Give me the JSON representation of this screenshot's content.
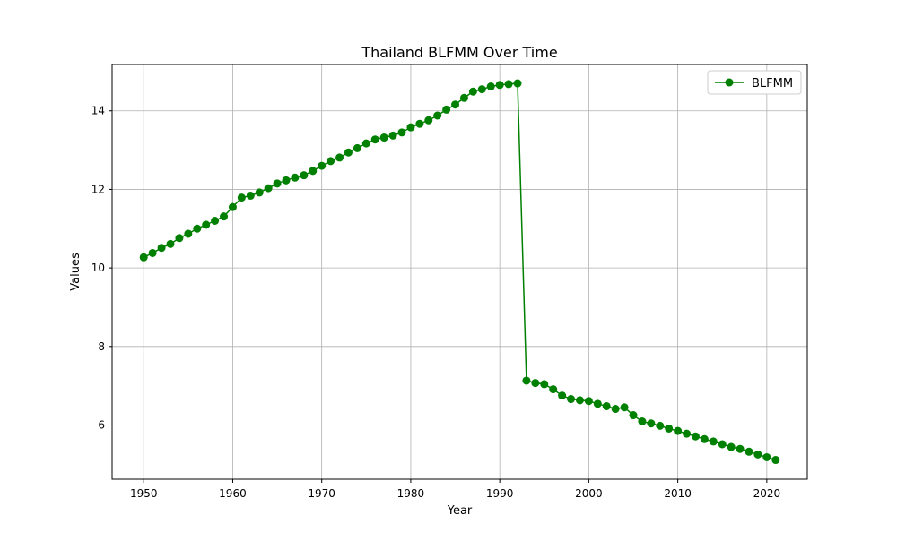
{
  "chart_data": {
    "type": "line",
    "title": "Thailand BLFMM Over Time",
    "xlabel": "Year",
    "ylabel": "Values",
    "xlim": [
      1946.45,
      2024.55
    ],
    "ylim": [
      4.62,
      15.18
    ],
    "x_ticks": [
      1950,
      1960,
      1970,
      1980,
      1990,
      2000,
      2010,
      2020
    ],
    "y_ticks": [
      6,
      8,
      10,
      12,
      14
    ],
    "grid": true,
    "legend_position": "top-right",
    "series": [
      {
        "name": "BLFMM",
        "color": "#008000",
        "marker": "circle",
        "x": [
          1950,
          1951,
          1952,
          1953,
          1954,
          1955,
          1956,
          1957,
          1958,
          1959,
          1960,
          1961,
          1962,
          1963,
          1964,
          1965,
          1966,
          1967,
          1968,
          1969,
          1970,
          1971,
          1972,
          1973,
          1974,
          1975,
          1976,
          1977,
          1978,
          1979,
          1980,
          1981,
          1982,
          1983,
          1984,
          1985,
          1986,
          1987,
          1988,
          1989,
          1990,
          1991,
          1992,
          1993,
          1994,
          1995,
          1996,
          1997,
          1998,
          1999,
          2000,
          2001,
          2002,
          2003,
          2004,
          2005,
          2006,
          2007,
          2008,
          2009,
          2010,
          2011,
          2012,
          2013,
          2014,
          2015,
          2016,
          2017,
          2018,
          2019,
          2020,
          2021
        ],
        "y": [
          10.27,
          10.38,
          10.51,
          10.61,
          10.76,
          10.87,
          11.0,
          11.1,
          11.2,
          11.31,
          11.55,
          11.79,
          11.84,
          11.92,
          12.03,
          12.15,
          12.23,
          12.3,
          12.36,
          12.47,
          12.6,
          12.72,
          12.81,
          12.94,
          13.05,
          13.17,
          13.27,
          13.32,
          13.37,
          13.45,
          13.58,
          13.67,
          13.76,
          13.88,
          14.03,
          14.16,
          14.33,
          14.49,
          14.55,
          14.62,
          14.66,
          14.68,
          14.7,
          7.13,
          7.07,
          7.04,
          6.91,
          6.75,
          6.66,
          6.63,
          6.61,
          6.54,
          6.48,
          6.41,
          6.45,
          6.25,
          6.09,
          6.04,
          5.98,
          5.91,
          5.85,
          5.78,
          5.71,
          5.64,
          5.58,
          5.51,
          5.44,
          5.39,
          5.32,
          5.25,
          5.18,
          5.11
        ]
      }
    ]
  }
}
